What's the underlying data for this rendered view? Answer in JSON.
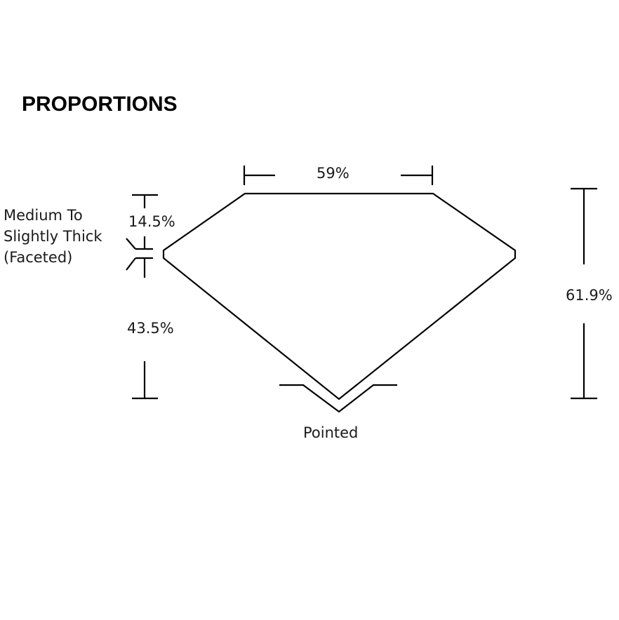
{
  "title": "PROPORTIONS",
  "labels": {
    "table": "59%",
    "crown_height": "14.5%",
    "pavilion_depth": "43.5%",
    "total_depth": "61.9%",
    "girdle": [
      "Medium To",
      "Slightly Thick",
      "(Faceted)"
    ],
    "culet": "Pointed"
  }
}
